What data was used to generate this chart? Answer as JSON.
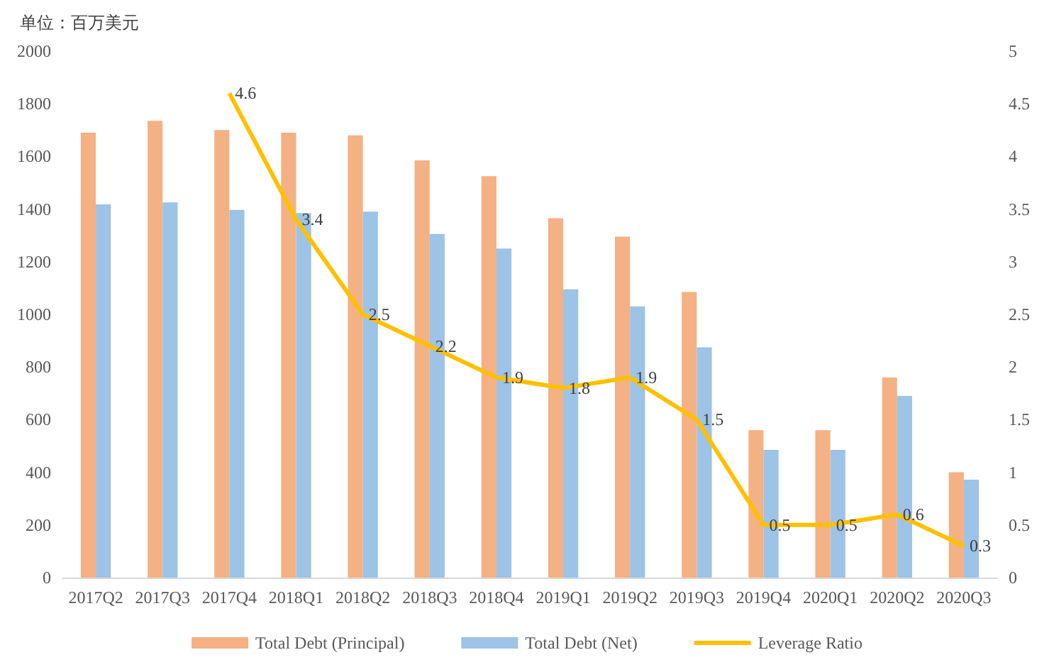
{
  "chart_data": {
    "type": "bar",
    "ylabel": "单位：百万美元",
    "categories": [
      "2017Q2",
      "2017Q3",
      "2017Q4",
      "2018Q1",
      "2018Q2",
      "2018Q3",
      "2018Q4",
      "2019Q1",
      "2019Q2",
      "2019Q3",
      "2019Q4",
      "2020Q1",
      "2020Q2",
      "2020Q3"
    ],
    "series": [
      {
        "name": "Total Debt (Principal)",
        "color": "#f4b183",
        "values": [
          1690,
          1735,
          1700,
          1690,
          1680,
          1585,
          1525,
          1365,
          1295,
          1085,
          560,
          560,
          760,
          400
        ]
      },
      {
        "name": "Total Debt (Net)",
        "color": "#9dc3e6",
        "values": [
          1418,
          1425,
          1397,
          1385,
          1390,
          1305,
          1250,
          1095,
          1030,
          875,
          485,
          485,
          690,
          372
        ]
      },
      {
        "name": "Leverage Ratio",
        "type": "line",
        "axis": "y2",
        "color": "#ffc000",
        "marker": "none",
        "values": [
          null,
          null,
          4.6,
          3.4,
          2.5,
          2.2,
          1.9,
          1.8,
          1.9,
          1.5,
          0.5,
          0.5,
          0.6,
          0.3
        ],
        "value_labels": [
          null,
          null,
          "4.6",
          "3.4",
          "2.5",
          "2.2",
          "1.9",
          "1.8",
          "1.9",
          "1.5",
          "0.5",
          "0.5",
          "0.6",
          "0.3"
        ]
      }
    ],
    "ylim": [
      0,
      2000
    ],
    "yticks": [
      0,
      200,
      400,
      600,
      800,
      1000,
      1200,
      1400,
      1600,
      1800,
      2000
    ],
    "y2lim": [
      0,
      5
    ],
    "y2ticks": [
      0,
      0.5,
      1,
      1.5,
      2,
      2.5,
      3,
      3.5,
      4,
      4.5,
      5
    ],
    "grid": false,
    "legend": "bottom"
  }
}
